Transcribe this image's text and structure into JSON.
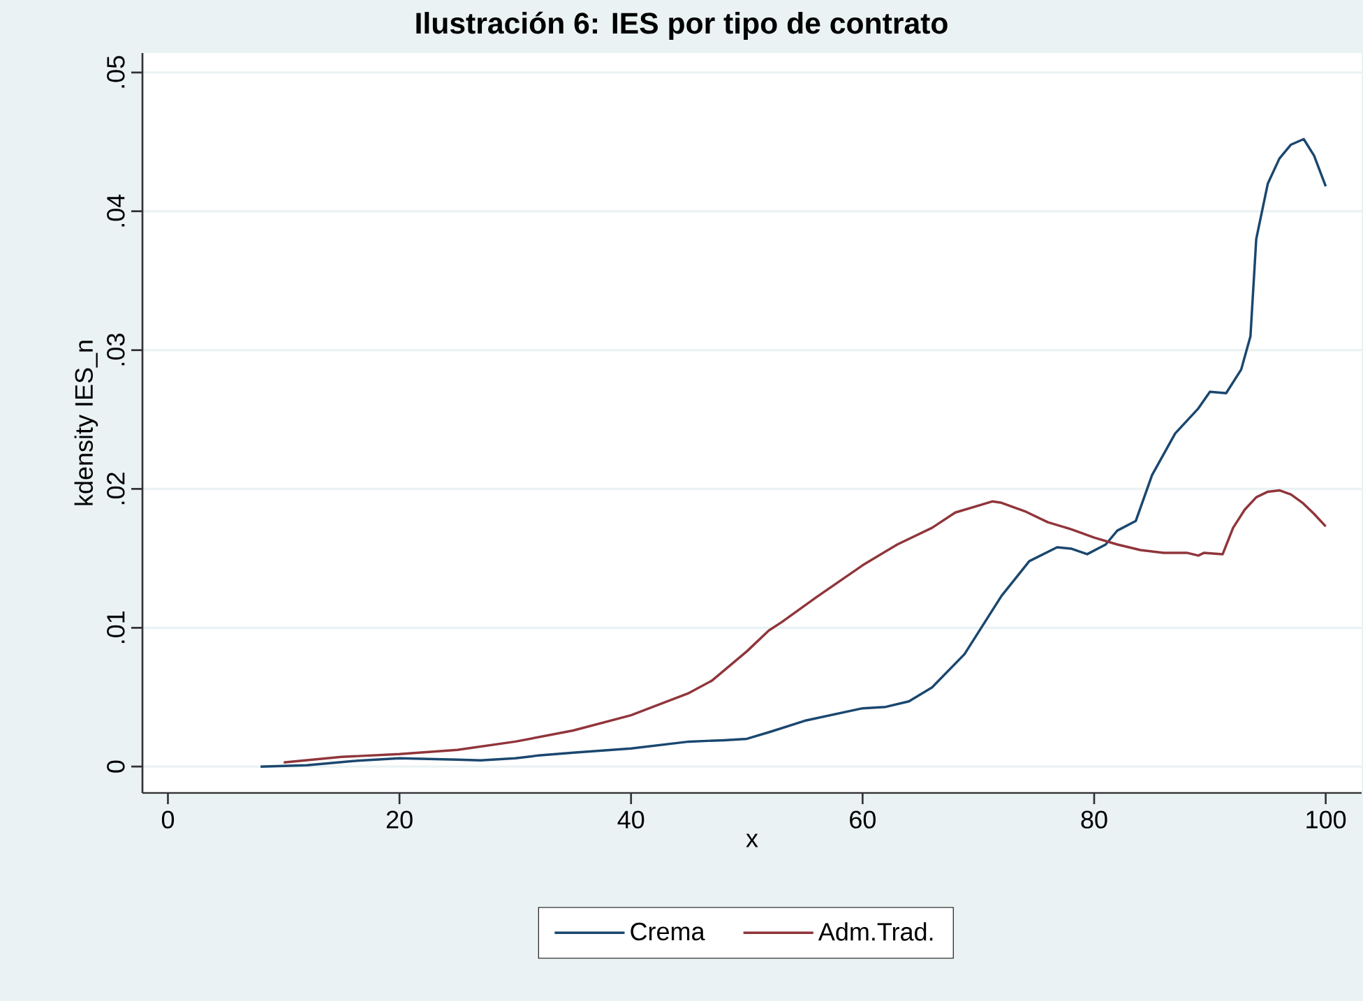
{
  "chart_data": {
    "type": "line",
    "title": "Ilustración 6: IES por tipo de contrato",
    "xlabel": "x",
    "ylabel": "kdensity IES_n",
    "xlim": [
      -2.2,
      103.1
    ],
    "ylim": [
      -0.0019,
      0.0514
    ],
    "xticks": [
      0,
      20,
      40,
      60,
      80,
      100
    ],
    "yticks": [
      {
        "value": 0,
        "label": "0"
      },
      {
        "value": 0.01,
        "label": ".01"
      },
      {
        "value": 0.02,
        "label": ".02"
      },
      {
        "value": 0.03,
        "label": ".03"
      },
      {
        "value": 0.04,
        "label": ".04"
      },
      {
        "value": 0.05,
        "label": ".05"
      }
    ],
    "grid": "y",
    "legend": "bottom",
    "line_style": "solid",
    "marker": "none",
    "series": [
      {
        "name": "Crema",
        "color": "#1a476f",
        "x": [
          8,
          12,
          16,
          20,
          25,
          27,
          30,
          32,
          35,
          40,
          45,
          48,
          50,
          52,
          55,
          60,
          62,
          64,
          66,
          68.8,
          72,
          74.4,
          76.8,
          78,
          79.4,
          81,
          82,
          83.6,
          85,
          87,
          89,
          90,
          91.4,
          92.7,
          93.5,
          94,
          95,
          96,
          97,
          98.1,
          99,
          100
        ],
        "values": [
          0,
          0.0001,
          0.0004,
          0.0006,
          0.0005,
          0.00045,
          0.0006,
          0.0008,
          0.001,
          0.0013,
          0.0018,
          0.0019,
          0.002,
          0.0025,
          0.0033,
          0.0042,
          0.0043,
          0.0047,
          0.0057,
          0.0081,
          0.0123,
          0.0148,
          0.0158,
          0.0157,
          0.0153,
          0.016,
          0.017,
          0.0177,
          0.021,
          0.024,
          0.0258,
          0.027,
          0.0269,
          0.0286,
          0.031,
          0.038,
          0.042,
          0.0438,
          0.0448,
          0.0452,
          0.044,
          0.0418
        ]
      },
      {
        "name": "Adm.Trad.",
        "color": "#90353b",
        "x": [
          10,
          15,
          20,
          25,
          30,
          35,
          40,
          45,
          47,
          50,
          51.9,
          53,
          56,
          60,
          63,
          66,
          68,
          71.2,
          72,
          74,
          76,
          78,
          80,
          82,
          84,
          86,
          88,
          89,
          89.5,
          91.1,
          92,
          93,
          94,
          95,
          96,
          97,
          98,
          99,
          100
        ],
        "values": [
          0.0003,
          0.0007,
          0.0009,
          0.0012,
          0.0018,
          0.0026,
          0.0037,
          0.0053,
          0.0062,
          0.0083,
          0.0098,
          0.0104,
          0.0122,
          0.0145,
          0.016,
          0.0172,
          0.0183,
          0.0191,
          0.019,
          0.0184,
          0.0176,
          0.0171,
          0.0165,
          0.016,
          0.0156,
          0.0154,
          0.0154,
          0.0152,
          0.0154,
          0.0153,
          0.0172,
          0.0185,
          0.0194,
          0.0198,
          0.0199,
          0.0196,
          0.019,
          0.0182,
          0.0173
        ]
      }
    ]
  }
}
